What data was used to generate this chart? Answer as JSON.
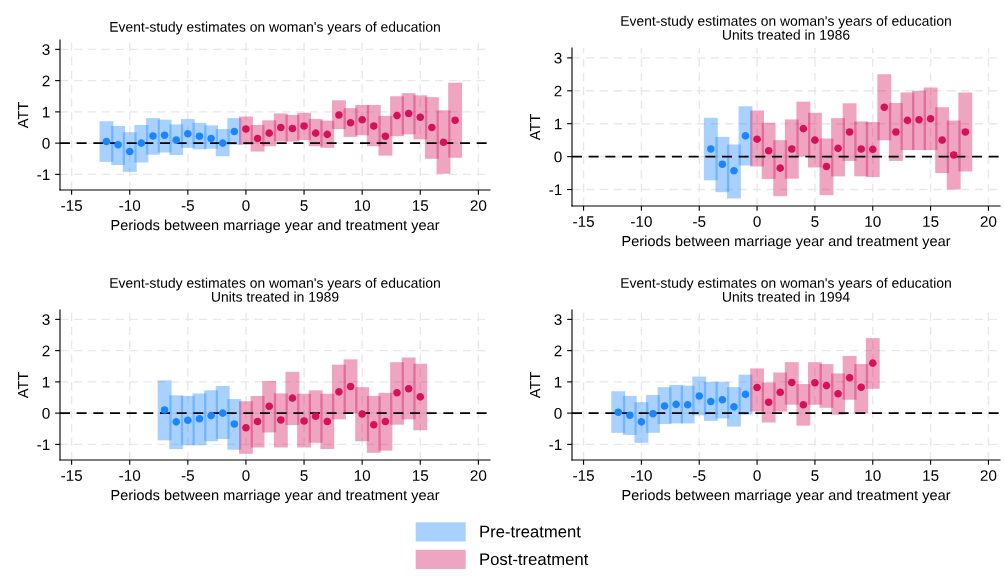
{
  "chart_data": [
    {
      "type": "scatter",
      "title": "Event-study estimates on woman's years of education",
      "xlabel": "Periods between marriage year and treatment year",
      "ylabel": "ATT",
      "xlim": [
        -16,
        21
      ],
      "xticks": [
        -15,
        -10,
        -5,
        0,
        5,
        10,
        15,
        20
      ],
      "ylim": [
        -1.5,
        3.3
      ],
      "yticks": [
        -1,
        0,
        1,
        2,
        3
      ],
      "grid": true,
      "marker": "circle",
      "legend": "bottom",
      "ref_lines": [
        {
          "axis": "y",
          "value": 0,
          "line_style": "dashed",
          "color": "#000000"
        }
      ],
      "series": [
        {
          "name": "Pre-treatment",
          "color": "#1a85ff",
          "x": [
            -12,
            -11,
            -10,
            -9,
            -8,
            -7,
            -6,
            -5,
            -4,
            -3,
            -2,
            -1
          ],
          "values": [
            0.05,
            -0.05,
            -0.27,
            0.0,
            0.23,
            0.25,
            0.1,
            0.3,
            0.22,
            0.15,
            0.0,
            0.37
          ],
          "errors": [
            [
              -0.6,
              0.7
            ],
            [
              -0.7,
              0.55
            ],
            [
              -0.92,
              0.35
            ],
            [
              -0.62,
              0.58
            ],
            [
              -0.37,
              0.8
            ],
            [
              -0.3,
              0.75
            ],
            [
              -0.38,
              0.6
            ],
            [
              -0.15,
              0.77
            ],
            [
              -0.2,
              0.65
            ],
            [
              -0.18,
              0.57
            ],
            [
              -0.42,
              0.45
            ],
            [
              -0.05,
              0.8
            ]
          ]
        },
        {
          "name": "Post-treatment",
          "color": "#d41159",
          "x": [
            0,
            1,
            2,
            3,
            4,
            5,
            6,
            7,
            8,
            9,
            10,
            11,
            12,
            13,
            14,
            15,
            16,
            17,
            18
          ],
          "values": [
            0.45,
            0.15,
            0.32,
            0.5,
            0.47,
            0.55,
            0.32,
            0.28,
            0.9,
            0.65,
            0.75,
            0.55,
            0.22,
            0.88,
            0.95,
            0.83,
            0.5,
            0.03,
            0.73
          ],
          "errors": [
            [
              -0.05,
              0.85
            ],
            [
              -0.27,
              0.58
            ],
            [
              -0.1,
              0.73
            ],
            [
              0.05,
              0.95
            ],
            [
              0.05,
              0.9
            ],
            [
              0.1,
              0.97
            ],
            [
              -0.1,
              0.77
            ],
            [
              -0.15,
              0.72
            ],
            [
              0.45,
              1.37
            ],
            [
              0.2,
              1.12
            ],
            [
              0.25,
              1.22
            ],
            [
              -0.1,
              1.22
            ],
            [
              -0.4,
              0.87
            ],
            [
              0.22,
              1.5
            ],
            [
              0.28,
              1.6
            ],
            [
              0.12,
              1.53
            ],
            [
              -0.5,
              1.47
            ],
            [
              -0.98,
              1.05
            ],
            [
              -0.47,
              1.93
            ]
          ]
        }
      ]
    },
    {
      "type": "scatter",
      "title": "Event-study estimates on woman's years of education",
      "subtitle": "Units treated in 1986",
      "xlabel": "Periods between marriage year and treatment year",
      "ylabel": "ATT",
      "xlim": [
        -16,
        21
      ],
      "xticks": [
        -15,
        -10,
        -5,
        0,
        5,
        10,
        15,
        20
      ],
      "ylim": [
        -1.5,
        3.3
      ],
      "yticks": [
        -1,
        0,
        1,
        2,
        3
      ],
      "grid": true,
      "marker": "circle",
      "ref_lines": [
        {
          "axis": "y",
          "value": 0,
          "line_style": "dashed",
          "color": "#000000"
        }
      ],
      "series": [
        {
          "color": "#1a85ff",
          "x": [
            -4,
            -3,
            -2,
            -1
          ],
          "values": [
            0.23,
            -0.23,
            -0.43,
            0.63
          ],
          "errors": [
            [
              -0.72,
              1.18
            ],
            [
              -1.08,
              0.6
            ],
            [
              -1.27,
              0.37
            ],
            [
              -0.27,
              1.53
            ]
          ]
        },
        {
          "color": "#d41159",
          "x": [
            0,
            1,
            2,
            3,
            4,
            5,
            6,
            7,
            8,
            9,
            10,
            11,
            12,
            13,
            14,
            15,
            16,
            17,
            18
          ],
          "values": [
            0.53,
            0.18,
            -0.35,
            0.23,
            0.85,
            0.5,
            -0.3,
            0.25,
            0.75,
            0.23,
            0.22,
            1.5,
            0.75,
            1.1,
            1.12,
            1.15,
            0.5,
            0.05,
            0.75
          ],
          "errors": [
            [
              -0.3,
              1.4
            ],
            [
              -0.68,
              1.03
            ],
            [
              -1.2,
              0.5
            ],
            [
              -0.67,
              1.13
            ],
            [
              0.0,
              1.67
            ],
            [
              -0.33,
              1.33
            ],
            [
              -1.17,
              0.55
            ],
            [
              -0.6,
              1.17
            ],
            [
              -0.13,
              1.62
            ],
            [
              -0.6,
              1.07
            ],
            [
              -0.62,
              1.05
            ],
            [
              0.5,
              2.5
            ],
            [
              -0.13,
              1.63
            ],
            [
              0.2,
              1.95
            ],
            [
              0.2,
              2.0
            ],
            [
              0.2,
              2.1
            ],
            [
              -0.5,
              1.5
            ],
            [
              -1.0,
              1.1
            ],
            [
              -0.45,
              1.95
            ]
          ]
        }
      ]
    },
    {
      "type": "scatter",
      "title": "Event-study estimates on woman's years of education",
      "subtitle": "Units treated in 1989",
      "xlabel": "Periods between marriage year and treatment year",
      "ylabel": "ATT",
      "xlim": [
        -16,
        21
      ],
      "xticks": [
        -15,
        -10,
        -5,
        0,
        5,
        10,
        15,
        20
      ],
      "ylim": [
        -1.5,
        3.3
      ],
      "yticks": [
        -1,
        0,
        1,
        2,
        3
      ],
      "grid": true,
      "marker": "circle",
      "ref_lines": [
        {
          "axis": "y",
          "value": 0,
          "line_style": "dashed",
          "color": "#000000"
        }
      ],
      "series": [
        {
          "color": "#1a85ff",
          "x": [
            -7,
            -6,
            -5,
            -4,
            -3,
            -2,
            -1
          ],
          "values": [
            0.1,
            -0.28,
            -0.23,
            -0.18,
            -0.08,
            0.0,
            -0.35
          ],
          "errors": [
            [
              -0.87,
              1.05
            ],
            [
              -1.15,
              0.57
            ],
            [
              -1.03,
              0.55
            ],
            [
              -1.03,
              0.63
            ],
            [
              -0.9,
              0.73
            ],
            [
              -0.83,
              0.87
            ],
            [
              -1.17,
              0.45
            ]
          ]
        },
        {
          "color": "#d41159",
          "x": [
            0,
            1,
            2,
            3,
            4,
            5,
            6,
            7,
            8,
            9,
            10,
            11,
            12,
            13,
            14,
            15
          ],
          "values": [
            -0.47,
            -0.27,
            0.22,
            -0.22,
            0.48,
            -0.25,
            -0.1,
            -0.27,
            0.68,
            0.85,
            -0.03,
            -0.37,
            -0.27,
            0.65,
            0.78,
            0.52
          ],
          "errors": [
            [
              -1.3,
              0.38
            ],
            [
              -1.1,
              0.55
            ],
            [
              -0.62,
              1.03
            ],
            [
              -1.1,
              0.63
            ],
            [
              -0.38,
              1.32
            ],
            [
              -1.1,
              0.62
            ],
            [
              -0.95,
              0.73
            ],
            [
              -1.15,
              0.62
            ],
            [
              -0.2,
              1.55
            ],
            [
              0.0,
              1.72
            ],
            [
              -0.9,
              0.83
            ],
            [
              -1.27,
              0.55
            ],
            [
              -1.2,
              0.65
            ],
            [
              -0.37,
              1.63
            ],
            [
              -0.2,
              1.78
            ],
            [
              -0.55,
              1.58
            ]
          ]
        }
      ]
    },
    {
      "type": "scatter",
      "title": "Event-study estimates on woman's years of education",
      "subtitle": "Units treated in 1994",
      "xlabel": "Periods between marriage year and treatment year",
      "ylabel": "ATT",
      "xlim": [
        -16,
        21
      ],
      "xticks": [
        -15,
        -10,
        -5,
        0,
        5,
        10,
        15,
        20
      ],
      "ylim": [
        -1.5,
        3.3
      ],
      "yticks": [
        -1,
        0,
        1,
        2,
        3
      ],
      "grid": true,
      "marker": "circle",
      "ref_lines": [
        {
          "axis": "y",
          "value": 0,
          "line_style": "dashed",
          "color": "#000000"
        }
      ],
      "series": [
        {
          "color": "#1a85ff",
          "x": [
            -12,
            -11,
            -10,
            -9,
            -8,
            -7,
            -6,
            -5,
            -4,
            -3,
            -2,
            -1
          ],
          "values": [
            0.03,
            -0.07,
            -0.28,
            -0.02,
            0.23,
            0.28,
            0.27,
            0.55,
            0.37,
            0.43,
            0.2,
            0.6
          ],
          "errors": [
            [
              -0.63,
              0.7
            ],
            [
              -0.7,
              0.55
            ],
            [
              -0.95,
              0.35
            ],
            [
              -0.63,
              0.58
            ],
            [
              -0.35,
              0.83
            ],
            [
              -0.33,
              0.9
            ],
            [
              -0.33,
              0.88
            ],
            [
              -0.07,
              1.17
            ],
            [
              -0.25,
              1.0
            ],
            [
              -0.17,
              1.0
            ],
            [
              -0.43,
              0.83
            ],
            [
              -0.05,
              1.23
            ]
          ]
        },
        {
          "color": "#d41159",
          "x": [
            0,
            1,
            2,
            3,
            4,
            5,
            6,
            7,
            8,
            9,
            10
          ],
          "values": [
            0.82,
            0.35,
            0.67,
            0.98,
            0.27,
            0.97,
            0.88,
            0.62,
            1.13,
            0.83,
            1.6
          ],
          "errors": [
            [
              0.05,
              1.43
            ],
            [
              -0.3,
              0.98
            ],
            [
              0.05,
              1.3
            ],
            [
              0.27,
              1.63
            ],
            [
              -0.4,
              0.93
            ],
            [
              0.27,
              1.63
            ],
            [
              0.17,
              1.57
            ],
            [
              -0.05,
              1.27
            ],
            [
              0.43,
              1.83
            ],
            [
              0.0,
              1.57
            ],
            [
              0.78,
              2.4
            ]
          ]
        }
      ]
    }
  ]
}
